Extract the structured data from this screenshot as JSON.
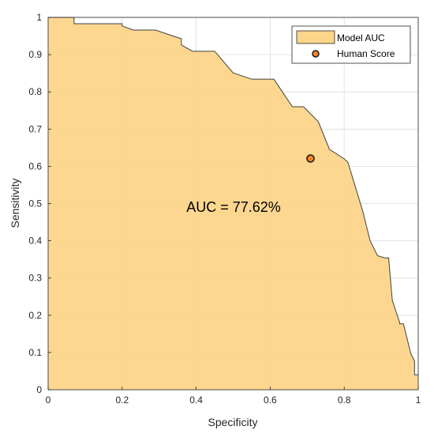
{
  "chart_data": {
    "type": "area",
    "xlabel": "Specificity",
    "ylabel": "Sensitivity",
    "xlim": [
      0,
      1
    ],
    "ylim": [
      0,
      1
    ],
    "xticks": [
      "0",
      "0.2",
      "0.4",
      "0.6",
      "0.8",
      "1"
    ],
    "yticks": [
      "0",
      "0.1",
      "0.2",
      "0.3",
      "0.4",
      "0.5",
      "0.6",
      "0.7",
      "0.8",
      "0.9",
      "1"
    ],
    "grid": true,
    "legend_position": "top-right",
    "annotation": "AUC = 77.62%",
    "series": [
      {
        "name": "Model AUC",
        "kind": "area",
        "color": "#FDD58A",
        "edge_color": "#404040",
        "x": [
          0,
          0.07,
          0.07,
          0.2,
          0.2,
          0.23,
          0.29,
          0.34,
          0.36,
          0.36,
          0.39,
          0.45,
          0.5,
          0.55,
          0.6,
          0.61,
          0.66,
          0.69,
          0.73,
          0.76,
          0.8,
          0.81,
          0.85,
          0.86,
          0.87,
          0.89,
          0.91,
          0.92,
          0.93,
          0.95,
          0.95,
          0.96,
          0.98,
          0.98,
          0.99,
          0.99,
          1.0
        ],
        "y": [
          1.0,
          1.0,
          0.983,
          0.983,
          0.977,
          0.966,
          0.966,
          0.949,
          0.943,
          0.926,
          0.909,
          0.909,
          0.851,
          0.834,
          0.834,
          0.834,
          0.76,
          0.76,
          0.72,
          0.646,
          0.62,
          0.611,
          0.48,
          0.44,
          0.4,
          0.36,
          0.354,
          0.354,
          0.24,
          0.18,
          0.177,
          0.177,
          0.097,
          0.097,
          0.077,
          0.04,
          0.04
        ]
      },
      {
        "name": "Human Score",
        "kind": "scatter",
        "color": "#F5852A",
        "edge_color": "#1a1a1a",
        "x": [
          0.709
        ],
        "y": [
          0.621
        ]
      }
    ]
  }
}
